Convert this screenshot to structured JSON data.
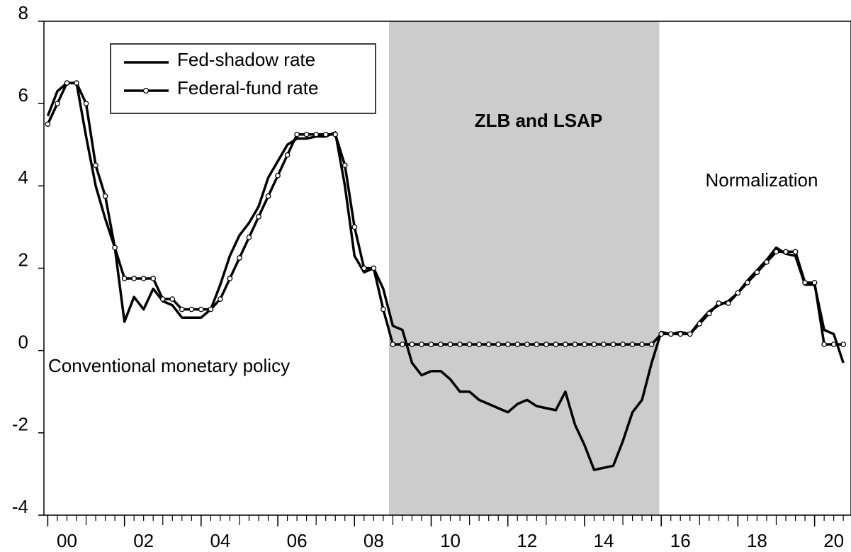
{
  "chart_data": {
    "type": "line",
    "x": [
      2000,
      2000.25,
      2000.5,
      2000.75,
      2001,
      2001.25,
      2001.5,
      2001.75,
      2002,
      2002.25,
      2002.5,
      2002.75,
      2003,
      2003.25,
      2003.5,
      2003.75,
      2004,
      2004.25,
      2004.5,
      2004.75,
      2005,
      2005.25,
      2005.5,
      2005.75,
      2006,
      2006.25,
      2006.5,
      2006.75,
      2007,
      2007.25,
      2007.5,
      2007.75,
      2008,
      2008.25,
      2008.5,
      2008.75,
      2009,
      2009.25,
      2009.5,
      2009.75,
      2010,
      2010.25,
      2010.5,
      2010.75,
      2011,
      2011.25,
      2011.5,
      2011.75,
      2012,
      2012.25,
      2012.5,
      2012.75,
      2013,
      2013.25,
      2013.5,
      2013.75,
      2014,
      2014.25,
      2014.5,
      2014.75,
      2015,
      2015.25,
      2015.5,
      2015.75,
      2016,
      2016.25,
      2016.5,
      2016.75,
      2017,
      2017.25,
      2017.5,
      2017.75,
      2018,
      2018.25,
      2018.5,
      2018.75,
      2019,
      2019.25,
      2019.5,
      2019.75,
      2020,
      2020.25,
      2020.5,
      2020.75
    ],
    "series": [
      {
        "name": "Fed-shadow rate",
        "color": "#000000",
        "marker": false,
        "values": [
          5.7,
          6.3,
          6.5,
          6.5,
          5.2,
          4.0,
          3.2,
          2.5,
          0.7,
          1.3,
          1.0,
          1.5,
          1.2,
          1.1,
          0.8,
          0.8,
          0.8,
          1.0,
          1.6,
          2.3,
          2.8,
          3.1,
          3.5,
          4.2,
          4.6,
          5.0,
          5.15,
          5.15,
          5.2,
          5.2,
          5.3,
          4.0,
          2.3,
          1.9,
          2.0,
          1.5,
          0.6,
          0.5,
          -0.3,
          -0.6,
          -0.5,
          -0.5,
          -0.7,
          -1.0,
          -1.0,
          -1.2,
          -1.3,
          -1.4,
          -1.5,
          -1.3,
          -1.2,
          -1.35,
          -1.4,
          -1.45,
          -1.0,
          -1.8,
          -2.3,
          -2.9,
          -2.85,
          -2.8,
          -2.2,
          -1.5,
          -1.2,
          -0.3,
          0.45,
          0.4,
          0.45,
          0.4,
          0.7,
          0.95,
          1.1,
          1.2,
          1.4,
          1.7,
          1.95,
          2.2,
          2.5,
          2.35,
          2.3,
          1.6,
          1.6,
          0.5,
          0.4,
          -0.3
        ]
      },
      {
        "name": "Federal-fund rate",
        "color": "#000000",
        "marker": true,
        "values": [
          5.5,
          6.0,
          6.5,
          6.5,
          6.0,
          4.5,
          3.75,
          2.5,
          1.75,
          1.75,
          1.75,
          1.75,
          1.25,
          1.25,
          1.0,
          1.0,
          1.0,
          1.0,
          1.25,
          1.75,
          2.25,
          2.75,
          3.25,
          3.75,
          4.25,
          4.75,
          5.25,
          5.25,
          5.25,
          5.25,
          5.25,
          4.5,
          3.0,
          2.0,
          2.0,
          1.0,
          0.15,
          0.15,
          0.15,
          0.15,
          0.15,
          0.15,
          0.15,
          0.15,
          0.15,
          0.15,
          0.15,
          0.15,
          0.15,
          0.15,
          0.15,
          0.15,
          0.15,
          0.15,
          0.15,
          0.15,
          0.15,
          0.15,
          0.15,
          0.15,
          0.15,
          0.15,
          0.15,
          0.15,
          0.4,
          0.4,
          0.4,
          0.4,
          0.65,
          0.9,
          1.15,
          1.15,
          1.4,
          1.65,
          1.9,
          2.15,
          2.4,
          2.4,
          2.4,
          1.65,
          1.65,
          0.15,
          0.15,
          0.15
        ]
      }
    ],
    "xlim": [
      1999.9,
      2020.95
    ],
    "ylim": [
      -4,
      8
    ],
    "yticks": [
      -4,
      -2,
      0,
      2,
      4,
      6,
      8
    ],
    "xticks": [
      {
        "value": 2000,
        "label": "00"
      },
      {
        "value": 2002,
        "label": "02"
      },
      {
        "value": 2004,
        "label": "04"
      },
      {
        "value": 2006,
        "label": "06"
      },
      {
        "value": 2008,
        "label": "08"
      },
      {
        "value": 2010,
        "label": "10"
      },
      {
        "value": 2012,
        "label": "12"
      },
      {
        "value": 2014,
        "label": "14"
      },
      {
        "value": 2016,
        "label": "16"
      },
      {
        "value": 2018,
        "label": "18"
      },
      {
        "value": 2020,
        "label": "20"
      }
    ],
    "shaded_region": [
      2008.9,
      2015.95
    ],
    "shade_color": "#cccccc",
    "legend": "upper left",
    "annotations": [
      "ZLB and LSAP",
      "Normalization",
      "Conventional monetary policy"
    ]
  }
}
